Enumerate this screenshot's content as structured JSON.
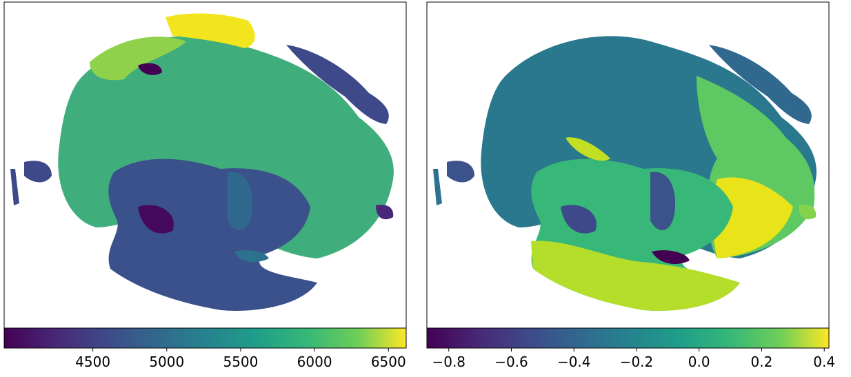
{
  "chart_data": [
    {
      "type": "colorbar",
      "xlim": [
        3900,
        6620
      ],
      "xticks": [
        4500,
        5000,
        5500,
        6000,
        6500
      ]
    },
    {
      "type": "colorbar",
      "xlim": [
        -0.87,
        0.415
      ],
      "xticks": [
        {
          "value": -0.8,
          "label": "−0.8"
        },
        {
          "value": -0.6,
          "label": "−0.6"
        },
        {
          "value": -0.4,
          "label": "−0.4"
        },
        {
          "value": -0.2,
          "label": "−0.2"
        },
        {
          "value": 0.0,
          "label": "0.0"
        },
        0.2,
        0.4
      ]
    }
  ]
}
